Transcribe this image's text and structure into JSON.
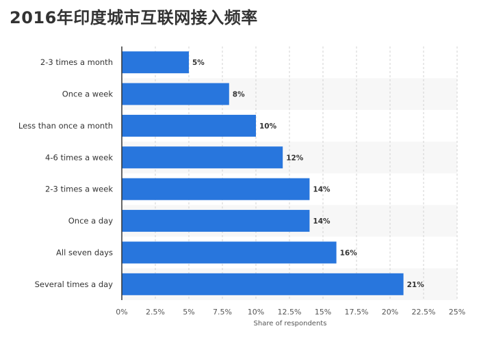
{
  "title": "2016年印度城市互联网接入频率",
  "chart_data": {
    "type": "bar",
    "orientation": "horizontal",
    "title": "2016年印度城市互联网接入频率",
    "xlabel": "Share of respondents",
    "ylabel": "",
    "xlim": [
      0,
      25
    ],
    "ticks": [
      "0%",
      "2.5%",
      "5%",
      "7.5%",
      "10%",
      "12.5%",
      "15%",
      "17.5%",
      "20%",
      "22.5%",
      "25%"
    ],
    "tick_values": [
      0,
      2.5,
      5,
      7.5,
      10,
      12.5,
      15,
      17.5,
      20,
      22.5,
      25
    ],
    "categories": [
      "2-3 times a month",
      "Once a week",
      "Less than once a month",
      "4-6 times a week",
      "2-3 times a week",
      "Once a day",
      "All seven days",
      "Several times a day"
    ],
    "values": [
      5,
      8,
      10,
      12,
      14,
      14,
      16,
      21
    ],
    "value_labels": [
      "5%",
      "8%",
      "10%",
      "12%",
      "14%",
      "14%",
      "16%",
      "21%"
    ],
    "bar_color": "#2876dd",
    "band_color": "#f7f7f7",
    "grid": true,
    "legend": "none"
  }
}
